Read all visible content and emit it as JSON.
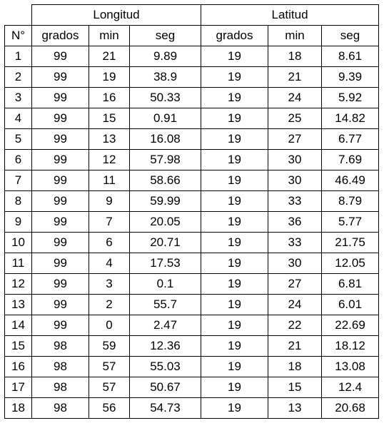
{
  "header": {
    "group_longitude": "Longitud",
    "group_latitude": "Latitud",
    "columns": [
      "N°",
      "grados",
      "min",
      "seg",
      "grados",
      "min",
      "seg"
    ]
  },
  "rows": [
    [
      "1",
      "99",
      "21",
      "9.89",
      "19",
      "18",
      "8.61"
    ],
    [
      "2",
      "99",
      "19",
      "38.9",
      "19",
      "21",
      "9.39"
    ],
    [
      "3",
      "99",
      "16",
      "50.33",
      "19",
      "24",
      "5.92"
    ],
    [
      "4",
      "99",
      "15",
      "0.91",
      "19",
      "25",
      "14.82"
    ],
    [
      "5",
      "99",
      "13",
      "16.08",
      "19",
      "27",
      "6.77"
    ],
    [
      "6",
      "99",
      "12",
      "57.98",
      "19",
      "30",
      "7.69"
    ],
    [
      "7",
      "99",
      "11",
      "58.66",
      "19",
      "30",
      "46.49"
    ],
    [
      "8",
      "99",
      "9",
      "59.99",
      "19",
      "33",
      "8.79"
    ],
    [
      "9",
      "99",
      "7",
      "20.05",
      "19",
      "36",
      "5.77"
    ],
    [
      "10",
      "99",
      "6",
      "20.71",
      "19",
      "33",
      "21.75"
    ],
    [
      "11",
      "99",
      "4",
      "17.53",
      "19",
      "30",
      "12.05"
    ],
    [
      "12",
      "99",
      "3",
      "0.1",
      "19",
      "27",
      "6.81"
    ],
    [
      "13",
      "99",
      "2",
      "55.7",
      "19",
      "24",
      "6.01"
    ],
    [
      "14",
      "99",
      "0",
      "2.47",
      "19",
      "22",
      "22.69"
    ],
    [
      "15",
      "98",
      "59",
      "12.36",
      "19",
      "21",
      "18.12"
    ],
    [
      "16",
      "98",
      "57",
      "55.03",
      "19",
      "18",
      "13.08"
    ],
    [
      "17",
      "98",
      "57",
      "50.67",
      "19",
      "15",
      "12.4"
    ],
    [
      "18",
      "98",
      "56",
      "54.73",
      "19",
      "13",
      "20.68"
    ]
  ]
}
